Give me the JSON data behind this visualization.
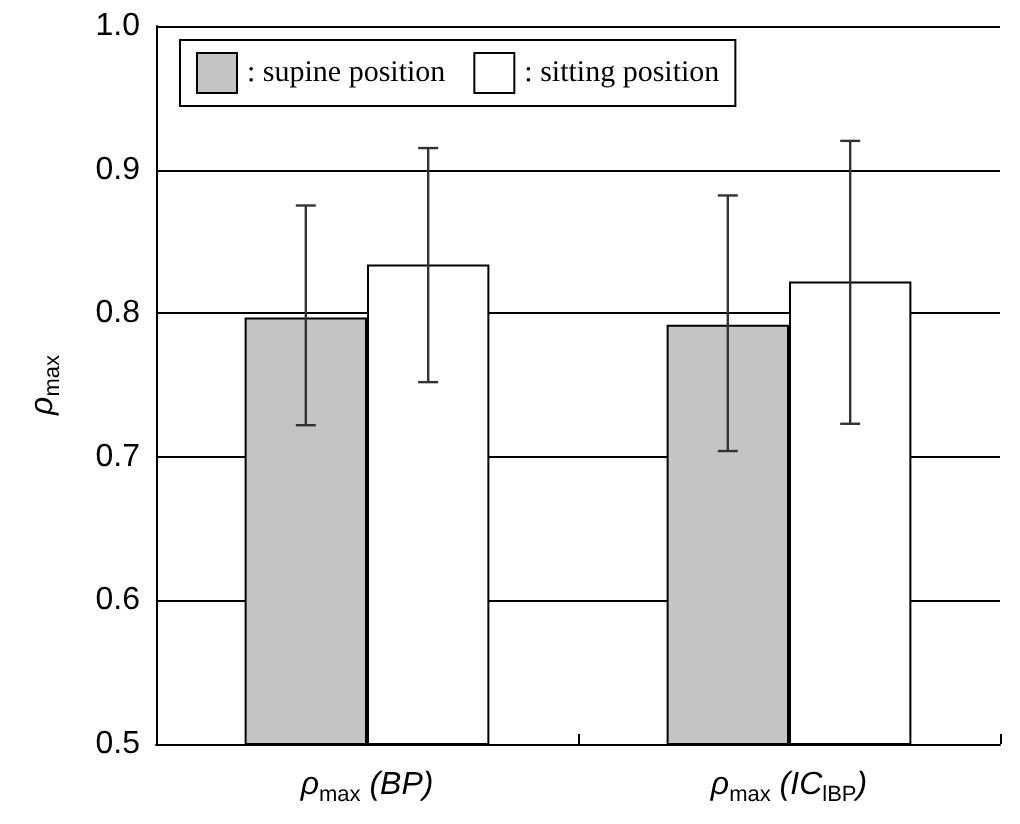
{
  "chart_data": {
    "type": "bar",
    "ylabel": "ρ$_{max}$",
    "categories": [
      "ρ$_{max}$ (BP)",
      "ρ$_{max}$ (IC$_{lBP}$)"
    ],
    "series": [
      {
        "name": ": supine position",
        "color": "#c4c4c4",
        "values": [
          0.797,
          0.792
        ],
        "errors": [
          [
            0.722,
            0.875
          ],
          [
            0.704,
            0.882
          ]
        ]
      },
      {
        "name": ": sitting position",
        "color": "#ffffff",
        "values": [
          0.834,
          0.822
        ],
        "errors": [
          [
            0.752,
            0.915
          ],
          [
            0.723,
            0.92
          ]
        ]
      }
    ],
    "ylim": [
      0.5,
      1.0
    ],
    "yticks": [
      0.5,
      0.6,
      0.7,
      0.8,
      0.9,
      {
        "value": 1.0,
        "label": "1.0"
      }
    ],
    "grid": "y",
    "legend": "top left"
  }
}
